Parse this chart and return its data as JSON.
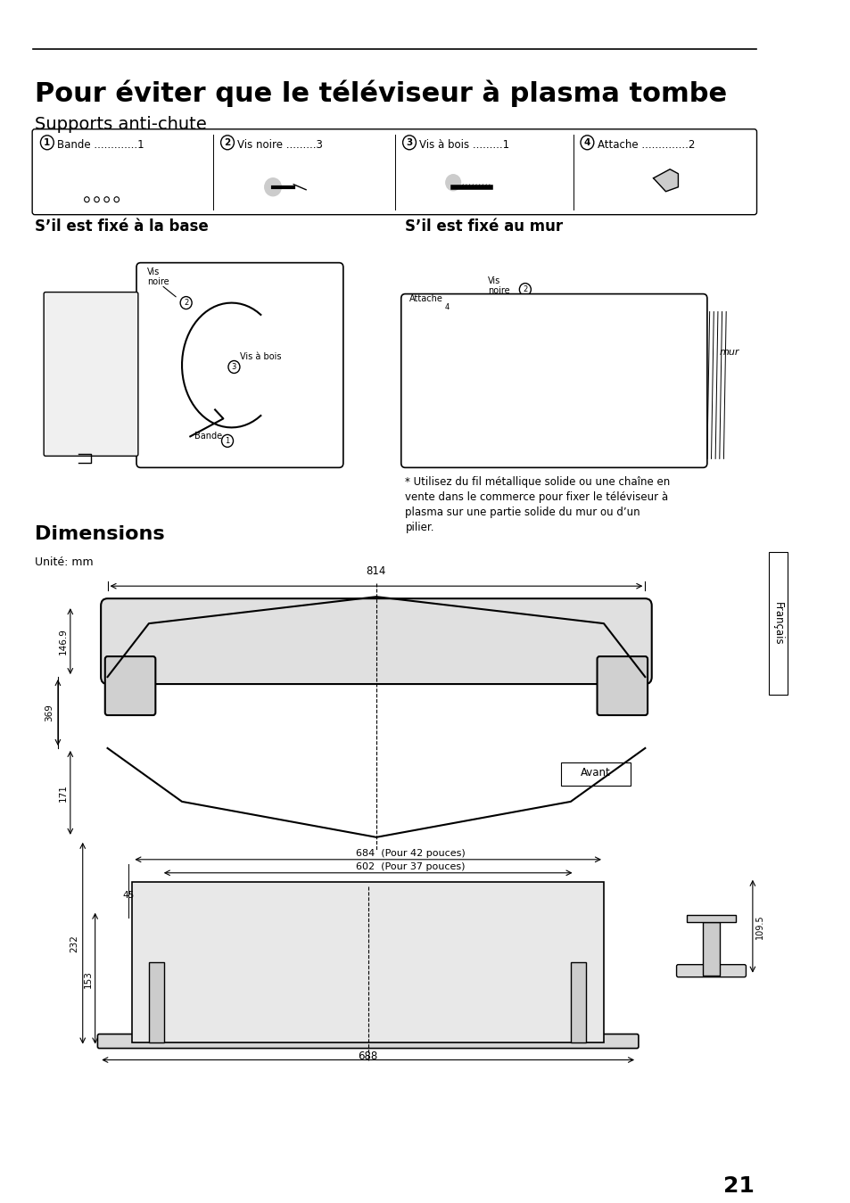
{
  "bg_color": "#ffffff",
  "title_main": "Pour éviter que le téléviseur à plasma tombe",
  "title_sub": "Supports anti-chute",
  "section1_title": "S’il est fixé à la base",
  "section2_title": "S’il est fixé au mur",
  "dimensions_title": "Dimensions",
  "dimensions_unit": "Unité: mm",
  "page_number": "21",
  "sidebar_text": "Français",
  "parts": [
    {
      "num": "1",
      "name": "Bande",
      "dots": ".............",
      "qty": "1"
    },
    {
      "num": "2",
      "name": "Vis noire",
      "dots": ".........",
      "qty": "3"
    },
    {
      "num": "3",
      "name": "Vis à bois",
      "dots": ".........",
      "qty": "1"
    },
    {
      "num": "4",
      "name": "Attache",
      "dots": "..............",
      "qty": "2"
    }
  ],
  "note_text": "* Utilisez du fil métallique solide ou une chaîne en\nvente dans le commerce pour fixer le téléviseur à\nplasma sur une partie solide du mur ou d’un\npilier.",
  "dim_labels": {
    "top_width": "814",
    "height_total": "369",
    "height_top": "146.9",
    "height_bottom": "171",
    "avant": "Avant",
    "width_42": "684  (Pour 42 pouces)",
    "width_37": "602  (Pour 37 pouces)",
    "height_stand": "232",
    "height_stand2": "153",
    "width_stand": "688",
    "height_side": "109.5",
    "dim_45": "45"
  }
}
